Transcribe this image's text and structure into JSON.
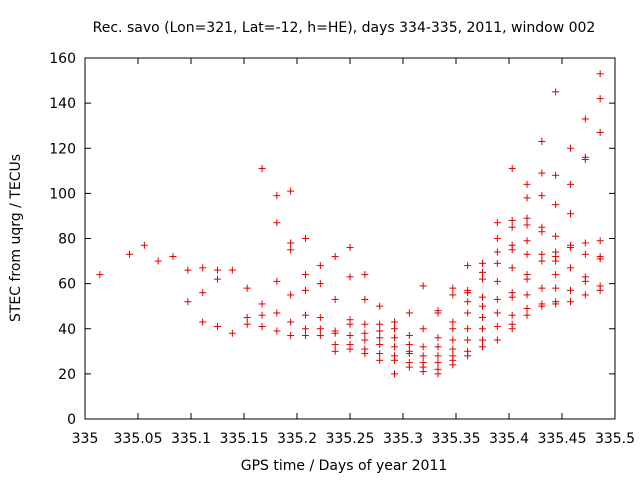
{
  "chart_data": {
    "type": "scatter",
    "title": "Rec. savo (Lon=321, Lat=-12, h=HE), days 334-335, 2011, window 002",
    "xlabel": "GPS time / Days of year 2011",
    "ylabel": "STEC from uqrg / TECUs",
    "xlim": [
      335,
      335.5
    ],
    "ylim": [
      0,
      160
    ],
    "xticks": [
      "335",
      "335.05",
      "335.1",
      "335.15",
      "335.2",
      "335.25",
      "335.3",
      "335.35",
      "335.4",
      "335.45",
      "335.5"
    ],
    "yticks": [
      "0",
      "20",
      "40",
      "60",
      "80",
      "100",
      "120",
      "140",
      "160"
    ],
    "grid": false,
    "marker": "+",
    "color": "#e00000",
    "points": [
      [
        335.014,
        64
      ],
      [
        335.042,
        73
      ],
      [
        335.056,
        77
      ],
      [
        335.069,
        70
      ],
      [
        335.083,
        72
      ],
      [
        335.097,
        66
      ],
      [
        335.097,
        52
      ],
      [
        335.111,
        67
      ],
      [
        335.111,
        56
      ],
      [
        335.111,
        43
      ],
      [
        335.125,
        66
      ],
      [
        335.125,
        62
      ],
      [
        335.125,
        41
      ],
      [
        335.139,
        66
      ],
      [
        335.139,
        38
      ],
      [
        335.153,
        58
      ],
      [
        335.153,
        45
      ],
      [
        335.153,
        42
      ],
      [
        335.167,
        111
      ],
      [
        335.167,
        51
      ],
      [
        335.167,
        46
      ],
      [
        335.167,
        41
      ],
      [
        335.181,
        99
      ],
      [
        335.181,
        87
      ],
      [
        335.181,
        61
      ],
      [
        335.181,
        47
      ],
      [
        335.181,
        39
      ],
      [
        335.194,
        101
      ],
      [
        335.194,
        78
      ],
      [
        335.194,
        75
      ],
      [
        335.194,
        55
      ],
      [
        335.194,
        43
      ],
      [
        335.194,
        37
      ],
      [
        335.208,
        80
      ],
      [
        335.208,
        64
      ],
      [
        335.208,
        57
      ],
      [
        335.208,
        46
      ],
      [
        335.208,
        40
      ],
      [
        335.208,
        37
      ],
      [
        335.222,
        68
      ],
      [
        335.222,
        60
      ],
      [
        335.222,
        45
      ],
      [
        335.222,
        40
      ],
      [
        335.222,
        37
      ],
      [
        335.236,
        72
      ],
      [
        335.236,
        53
      ],
      [
        335.236,
        39
      ],
      [
        335.236,
        38
      ],
      [
        335.236,
        33
      ],
      [
        335.236,
        30
      ],
      [
        335.25,
        76
      ],
      [
        335.25,
        63
      ],
      [
        335.25,
        44
      ],
      [
        335.25,
        42
      ],
      [
        335.25,
        37
      ],
      [
        335.25,
        33
      ],
      [
        335.25,
        31
      ],
      [
        335.264,
        64
      ],
      [
        335.264,
        53
      ],
      [
        335.264,
        42
      ],
      [
        335.264,
        38
      ],
      [
        335.264,
        35
      ],
      [
        335.264,
        31
      ],
      [
        335.264,
        29
      ],
      [
        335.278,
        50
      ],
      [
        335.278,
        42
      ],
      [
        335.278,
        39
      ],
      [
        335.278,
        36
      ],
      [
        335.278,
        33
      ],
      [
        335.278,
        29
      ],
      [
        335.278,
        26
      ],
      [
        335.292,
        43
      ],
      [
        335.292,
        40
      ],
      [
        335.292,
        36
      ],
      [
        335.292,
        32
      ],
      [
        335.292,
        28
      ],
      [
        335.292,
        26
      ],
      [
        335.292,
        20
      ],
      [
        335.306,
        47
      ],
      [
        335.306,
        37
      ],
      [
        335.306,
        33
      ],
      [
        335.306,
        30
      ],
      [
        335.306,
        29
      ],
      [
        335.306,
        25
      ],
      [
        335.306,
        23
      ],
      [
        335.319,
        59
      ],
      [
        335.319,
        40
      ],
      [
        335.319,
        32
      ],
      [
        335.319,
        28
      ],
      [
        335.319,
        25
      ],
      [
        335.319,
        23
      ],
      [
        335.319,
        21
      ],
      [
        335.333,
        48
      ],
      [
        335.333,
        47
      ],
      [
        335.333,
        36
      ],
      [
        335.333,
        32
      ],
      [
        335.333,
        28
      ],
      [
        335.333,
        25
      ],
      [
        335.333,
        22
      ],
      [
        335.333,
        20
      ],
      [
        335.347,
        58
      ],
      [
        335.347,
        55
      ],
      [
        335.347,
        43
      ],
      [
        335.347,
        40
      ],
      [
        335.347,
        35
      ],
      [
        335.347,
        31
      ],
      [
        335.347,
        28
      ],
      [
        335.347,
        26
      ],
      [
        335.347,
        24
      ],
      [
        335.361,
        68
      ],
      [
        335.361,
        57
      ],
      [
        335.361,
        56
      ],
      [
        335.361,
        52
      ],
      [
        335.361,
        47
      ],
      [
        335.361,
        40
      ],
      [
        335.361,
        35
      ],
      [
        335.361,
        30
      ],
      [
        335.361,
        28
      ],
      [
        335.375,
        69
      ],
      [
        335.375,
        65
      ],
      [
        335.375,
        62
      ],
      [
        335.375,
        54
      ],
      [
        335.375,
        50
      ],
      [
        335.375,
        45
      ],
      [
        335.375,
        40
      ],
      [
        335.375,
        35
      ],
      [
        335.375,
        32
      ],
      [
        335.389,
        87
      ],
      [
        335.389,
        80
      ],
      [
        335.389,
        74
      ],
      [
        335.389,
        69
      ],
      [
        335.389,
        61
      ],
      [
        335.389,
        53
      ],
      [
        335.389,
        47
      ],
      [
        335.389,
        41
      ],
      [
        335.389,
        35
      ],
      [
        335.403,
        111
      ],
      [
        335.403,
        88
      ],
      [
        335.403,
        85
      ],
      [
        335.403,
        77
      ],
      [
        335.403,
        75
      ],
      [
        335.403,
        67
      ],
      [
        335.403,
        56
      ],
      [
        335.403,
        54
      ],
      [
        335.403,
        46
      ],
      [
        335.403,
        42
      ],
      [
        335.403,
        40
      ],
      [
        335.417,
        104
      ],
      [
        335.417,
        98
      ],
      [
        335.417,
        89
      ],
      [
        335.417,
        86
      ],
      [
        335.417,
        79
      ],
      [
        335.417,
        73
      ],
      [
        335.417,
        64
      ],
      [
        335.417,
        62
      ],
      [
        335.417,
        55
      ],
      [
        335.417,
        49
      ],
      [
        335.417,
        46
      ],
      [
        335.431,
        123
      ],
      [
        335.431,
        109
      ],
      [
        335.431,
        99
      ],
      [
        335.431,
        85
      ],
      [
        335.431,
        83
      ],
      [
        335.431,
        73
      ],
      [
        335.431,
        70
      ],
      [
        335.431,
        58
      ],
      [
        335.431,
        51
      ],
      [
        335.431,
        50
      ],
      [
        335.444,
        145
      ],
      [
        335.444,
        108
      ],
      [
        335.444,
        95
      ],
      [
        335.444,
        81
      ],
      [
        335.444,
        74
      ],
      [
        335.444,
        72
      ],
      [
        335.444,
        70
      ],
      [
        335.444,
        64
      ],
      [
        335.444,
        58
      ],
      [
        335.444,
        52
      ],
      [
        335.444,
        51
      ],
      [
        335.458,
        120
      ],
      [
        335.458,
        104
      ],
      [
        335.458,
        91
      ],
      [
        335.458,
        77
      ],
      [
        335.458,
        76
      ],
      [
        335.458,
        67
      ],
      [
        335.458,
        57
      ],
      [
        335.458,
        52
      ],
      [
        335.472,
        133
      ],
      [
        335.472,
        116
      ],
      [
        335.472,
        115
      ],
      [
        335.472,
        78
      ],
      [
        335.472,
        73
      ],
      [
        335.472,
        63
      ],
      [
        335.472,
        61
      ],
      [
        335.472,
        55
      ],
      [
        335.486,
        153
      ],
      [
        335.486,
        142
      ],
      [
        335.486,
        127
      ],
      [
        335.486,
        79
      ],
      [
        335.486,
        72
      ],
      [
        335.486,
        71
      ],
      [
        335.486,
        59
      ],
      [
        335.486,
        57
      ]
    ]
  }
}
